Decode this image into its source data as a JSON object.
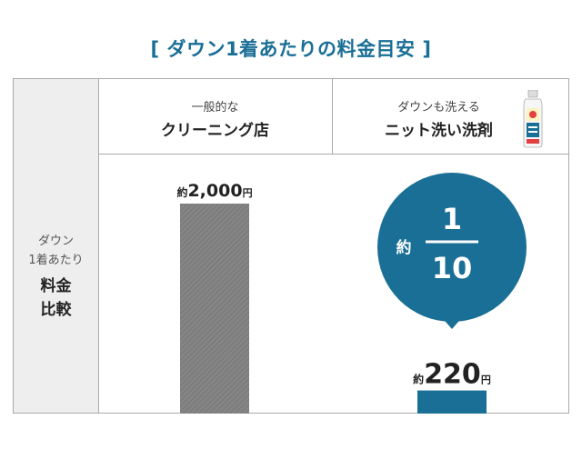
{
  "title": "[ ダウン1着あたりの料金目安 ]",
  "header": {
    "col1_sub": "一般的な",
    "col1_main": "クリーニング店",
    "col2_sub": "ダウンも洗える",
    "col2_main": "ニット洗い洗剤"
  },
  "row_label": {
    "line1": "ダウン",
    "line2": "1着あたり",
    "main1": "料金",
    "main2": "比較"
  },
  "callout": {
    "prefix": "約",
    "numerator": "1",
    "denominator": "10"
  },
  "colors": {
    "title": "#1a6f96",
    "bar_cleaning": "#808080",
    "bar_detergent": "#1a6f96",
    "callout": "#1a6f96"
  },
  "chart_data": {
    "type": "bar",
    "title": "[ ダウン1着あたりの料金目安 ]",
    "categories": [
      "クリーニング店",
      "ニット洗い洗剤"
    ],
    "values": [
      2000,
      220
    ],
    "labels": [
      {
        "prefix": "約",
        "number": "2,000",
        "unit": "円"
      },
      {
        "prefix": "約",
        "number": "220",
        "unit": "円"
      }
    ],
    "xlabel": "",
    "ylabel": "",
    "ylim": [
      0,
      2000
    ],
    "grid": false,
    "legend": "none"
  }
}
